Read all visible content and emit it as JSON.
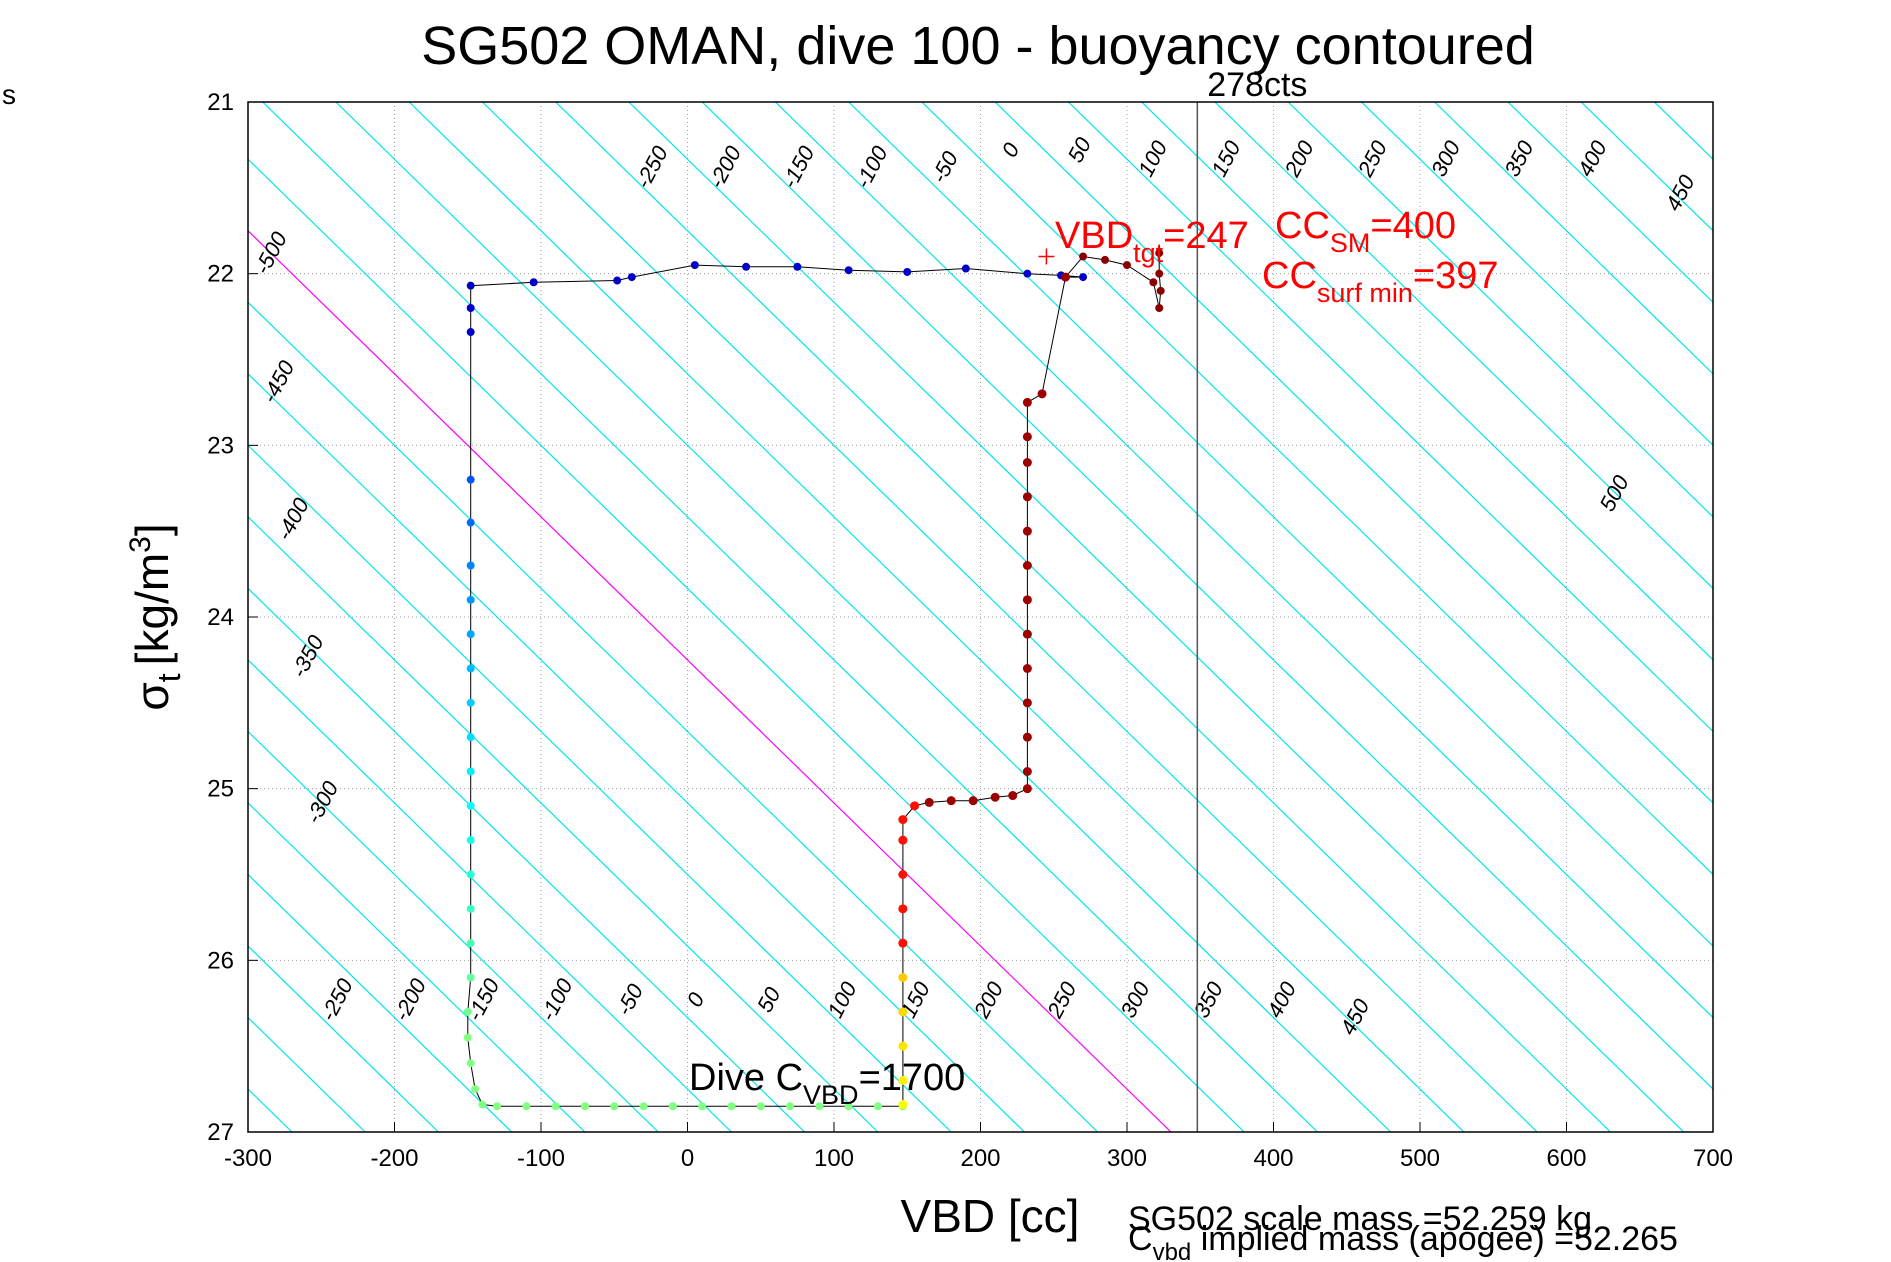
{
  "corner_label": "s",
  "chart_data": {
    "type": "scatter",
    "title": "SG502 OMAN, dive 100 - buoyancy contoured",
    "xlabel": "VBD [cc]",
    "ylabel": "σ",
    "ylabel_sub": "t",
    "ylabel_units": "[kg/m",
    "ylabel_units_sup": "3",
    "ylabel_units_end": "]",
    "xlim": [
      -300,
      700
    ],
    "ylim": [
      21,
      27
    ],
    "y_reversed": true,
    "grid": true,
    "x_ticks": [
      -300,
      -200,
      -100,
      0,
      100,
      200,
      300,
      400,
      500,
      600,
      700
    ],
    "y_ticks": [
      21,
      22,
      23,
      24,
      25,
      26,
      27
    ],
    "contour_slope_cc_per_sigma": 120,
    "contour_colors": {
      "buoyancy": "#00e5ee",
      "neutral": "#0000ff",
      "magenta": "#ff00ff"
    },
    "contour_labels": [
      {
        "text": "-500",
        "x": -280,
        "y": 21.9
      },
      {
        "text": "-450",
        "x": -275,
        "y": 22.65
      },
      {
        "text": "-400",
        "x": -265,
        "y": 23.45
      },
      {
        "text": "-350",
        "x": -255,
        "y": 24.25
      },
      {
        "text": "-300",
        "x": -245,
        "y": 25.1
      },
      {
        "text": "-250",
        "x": -235,
        "y": 26.25
      },
      {
        "text": "-200",
        "x": -185,
        "y": 26.25
      },
      {
        "text": "-150",
        "x": -135,
        "y": 26.25
      },
      {
        "text": "-100",
        "x": -85,
        "y": 26.25
      },
      {
        "text": "-50",
        "x": -35,
        "y": 26.25
      },
      {
        "text": "0",
        "x": 10,
        "y": 26.25
      },
      {
        "text": "50",
        "x": 60,
        "y": 26.25
      },
      {
        "text": "100",
        "x": 110,
        "y": 26.25
      },
      {
        "text": "150",
        "x": 160,
        "y": 26.25
      },
      {
        "text": "200",
        "x": 210,
        "y": 26.25
      },
      {
        "text": "250",
        "x": 260,
        "y": 26.25
      },
      {
        "text": "300",
        "x": 310,
        "y": 26.25
      },
      {
        "text": "350",
        "x": 360,
        "y": 26.25
      },
      {
        "text": "400",
        "x": 410,
        "y": 26.25
      },
      {
        "text": "450",
        "x": 460,
        "y": 26.35
      },
      {
        "text": "-250",
        "x": -20,
        "y": 21.4
      },
      {
        "text": "-200",
        "x": 30,
        "y": 21.4
      },
      {
        "text": "-150",
        "x": 80,
        "y": 21.4
      },
      {
        "text": "-100",
        "x": 130,
        "y": 21.4
      },
      {
        "text": "-50",
        "x": 180,
        "y": 21.4
      },
      {
        "text": "0",
        "x": 225,
        "y": 21.3
      },
      {
        "text": "50",
        "x": 272,
        "y": 21.3
      },
      {
        "text": "100",
        "x": 322,
        "y": 21.35
      },
      {
        "text": "150",
        "x": 372,
        "y": 21.35
      },
      {
        "text": "200",
        "x": 422,
        "y": 21.35
      },
      {
        "text": "250",
        "x": 472,
        "y": 21.35
      },
      {
        "text": "300",
        "x": 522,
        "y": 21.35
      },
      {
        "text": "350",
        "x": 572,
        "y": 21.35
      },
      {
        "text": "400",
        "x": 622,
        "y": 21.35
      },
      {
        "text": "450",
        "x": 682,
        "y": 21.55
      },
      {
        "text": "500",
        "x": 637,
        "y": 23.3
      }
    ],
    "vertical_line": {
      "x": 348,
      "label": "278cts"
    },
    "red_marker": {
      "x": 245,
      "y": 21.9
    },
    "annotations": [
      {
        "main": "VBD",
        "sub": "tgt",
        "rest": "=247",
        "color": "#ff0000"
      },
      {
        "main": "CC",
        "sub": "SM",
        "rest": "=400",
        "color": "#ff0000"
      },
      {
        "main": "CC",
        "sub": "surf min",
        "rest": "=397",
        "color": "#ff0000"
      },
      {
        "main": "Dive C",
        "sub": "VBD",
        "rest": "=1700",
        "color": "#000000"
      }
    ],
    "footer_lines": [
      "SG502 scale mass =52.259 kg",
      {
        "main": "C",
        "sub": "vbd",
        "rest": " implied mass (apogee) =52.265"
      }
    ],
    "series": [
      {
        "role": "dive_descent",
        "colormap": "jet",
        "points": [
          [
            322,
            21.88
          ],
          [
            322,
            22.0
          ],
          [
            323,
            22.1
          ],
          [
            322,
            22.2
          ],
          [
            318,
            22.05
          ],
          [
            300,
            21.95
          ],
          [
            285,
            21.92
          ],
          [
            270,
            21.9
          ],
          [
            258,
            22.02
          ],
          [
            270,
            22.02
          ],
          [
            255,
            22.01
          ],
          [
            232,
            22.0
          ],
          [
            190,
            21.97
          ],
          [
            150,
            21.99
          ],
          [
            110,
            21.98
          ],
          [
            75,
            21.96
          ],
          [
            40,
            21.96
          ],
          [
            5,
            21.95
          ],
          [
            -38,
            22.02
          ],
          [
            -48,
            22.04
          ],
          [
            -105,
            22.05
          ],
          [
            -148,
            22.07
          ],
          [
            -148,
            22.2
          ],
          [
            -148,
            22.34
          ],
          [
            -148,
            23.2
          ],
          [
            -148,
            23.45
          ],
          [
            -148,
            23.7
          ],
          [
            -148,
            23.9
          ],
          [
            -148,
            24.1
          ],
          [
            -148,
            24.3
          ],
          [
            -148,
            24.5
          ],
          [
            -148,
            24.7
          ],
          [
            -148,
            24.9
          ],
          [
            -148,
            25.1
          ],
          [
            -148,
            25.3
          ],
          [
            -148,
            25.5
          ],
          [
            -148,
            25.7
          ],
          [
            -148,
            25.9
          ],
          [
            -148,
            26.1
          ],
          [
            -150,
            26.3
          ],
          [
            -150,
            26.45
          ],
          [
            -148,
            26.6
          ],
          [
            -145,
            26.75
          ],
          [
            -140,
            26.84
          ],
          [
            -130,
            26.85
          ],
          [
            -110,
            26.85
          ],
          [
            -90,
            26.85
          ],
          [
            -70,
            26.85
          ],
          [
            -50,
            26.85
          ],
          [
            -30,
            26.85
          ],
          [
            -10,
            26.85
          ],
          [
            10,
            26.85
          ],
          [
            30,
            26.85
          ],
          [
            50,
            26.85
          ],
          [
            70,
            26.85
          ],
          [
            90,
            26.85
          ],
          [
            110,
            26.85
          ],
          [
            130,
            26.85
          ],
          [
            147,
            26.85
          ]
        ]
      },
      {
        "role": "climb",
        "colormap": "jet",
        "points": [
          [
            147,
            26.84
          ],
          [
            147,
            26.7
          ],
          [
            147,
            26.5
          ],
          [
            147,
            26.3
          ],
          [
            147,
            26.1
          ],
          [
            147,
            25.9
          ],
          [
            147,
            25.7
          ],
          [
            147,
            25.5
          ],
          [
            147,
            25.3
          ],
          [
            147,
            25.18
          ],
          [
            155,
            25.1
          ],
          [
            165,
            25.08
          ],
          [
            180,
            25.07
          ],
          [
            195,
            25.07
          ],
          [
            210,
            25.05
          ],
          [
            222,
            25.04
          ],
          [
            232,
            25.0
          ],
          [
            232,
            24.9
          ],
          [
            232,
            24.7
          ],
          [
            232,
            24.5
          ],
          [
            232,
            24.3
          ],
          [
            232,
            24.1
          ],
          [
            232,
            23.9
          ],
          [
            232,
            23.7
          ],
          [
            232,
            23.5
          ],
          [
            232,
            23.3
          ],
          [
            232,
            23.1
          ],
          [
            232,
            22.95
          ],
          [
            232,
            22.75
          ],
          [
            242,
            22.7
          ],
          [
            258,
            22.02
          ]
        ]
      }
    ]
  }
}
